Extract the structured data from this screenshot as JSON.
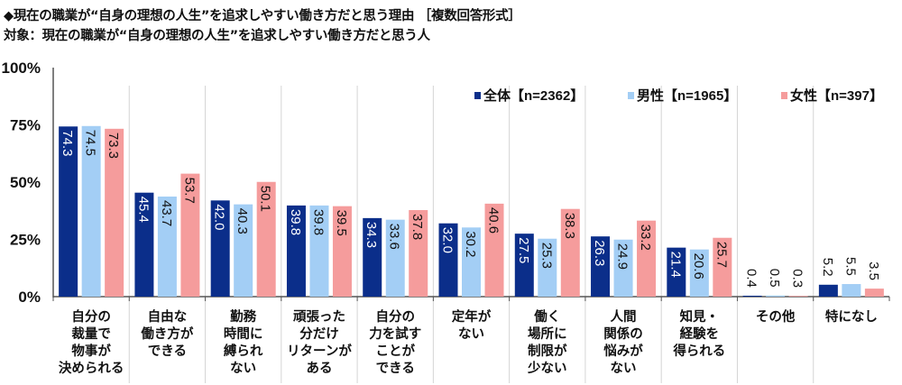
{
  "header": {
    "title": "◆現在の職業が“自身の理想の人生”を追求しやすい働き方だと思う理由 ［複数回答形式］",
    "subtitle": "対象：現在の職業が“自身の理想の人生”を追求しやすい働き方だと思う人"
  },
  "chart_data": {
    "type": "bar",
    "title": "◆現在の職業が“自身の理想の人生”を追求しやすい働き方だと思う理由 ［複数回答形式］",
    "subtitle": "対象：現在の職業が“自身の理想の人生”を追求しやすい働き方だと思う人",
    "categories": [
      [
        "自分の",
        "裁量で",
        "物事が",
        "決められる"
      ],
      [
        "自由な",
        "働き方が",
        "できる"
      ],
      [
        "勤務",
        "時間に",
        "縛られ",
        "ない"
      ],
      [
        "頑張った",
        "分だけ",
        "リターンが",
        "ある"
      ],
      [
        "自分の",
        "力を試す",
        "ことが",
        "できる"
      ],
      [
        "定年が",
        "ない"
      ],
      [
        "働く",
        "場所に",
        "制限が",
        "少ない"
      ],
      [
        "人間",
        "関係の",
        "悩みが",
        "ない"
      ],
      [
        "知見・",
        "経験を",
        "得られる"
      ],
      [
        "その他"
      ],
      [
        "特になし"
      ]
    ],
    "series": [
      {
        "name": "全体【n=2362】",
        "color": "#0b2e8a",
        "values": [
          74.3,
          45.4,
          42.0,
          39.8,
          34.3,
          32.0,
          27.5,
          26.3,
          21.4,
          0.4,
          5.2
        ]
      },
      {
        "name": "男性【n=1965】",
        "color": "#a3cef5",
        "values": [
          74.5,
          43.7,
          40.3,
          39.8,
          33.6,
          30.2,
          25.3,
          24.9,
          20.6,
          0.5,
          5.5
        ]
      },
      {
        "name": "女性【n=397】",
        "color": "#f59c9c",
        "values": [
          73.3,
          53.7,
          50.1,
          39.5,
          37.8,
          40.6,
          38.3,
          33.2,
          25.7,
          0.3,
          3.5
        ]
      }
    ],
    "y_ticks": [
      "0%",
      "25%",
      "50%",
      "75%",
      "100%"
    ],
    "ylim": [
      0,
      100
    ],
    "legend_position": "top-right",
    "grid": false
  }
}
